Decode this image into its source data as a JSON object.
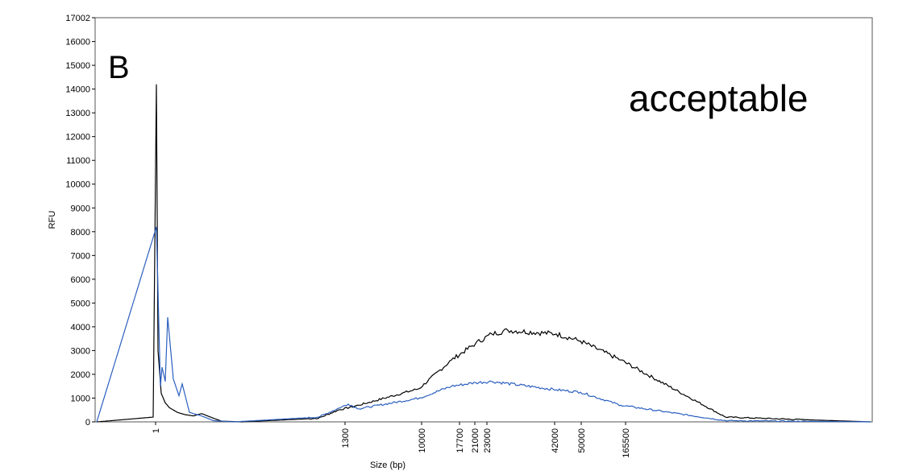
{
  "panel_label": "B",
  "annotation": "acceptable",
  "chart_data": {
    "type": "line",
    "xlabel": "Size (bp)",
    "ylabel": "RFU",
    "ylim": [
      0,
      17002
    ],
    "y_ticks": [
      0,
      1000,
      2000,
      3000,
      4000,
      5000,
      6000,
      7000,
      8000,
      9000,
      10000,
      11000,
      12000,
      13000,
      14000,
      15000,
      16000,
      17002
    ],
    "x_ticks": [
      "1",
      "1300",
      "10000",
      "17700",
      "21000",
      "23000",
      "42000",
      "50000",
      "165500"
    ],
    "grid": false,
    "series": [
      {
        "color": "#000000",
        "points": [
          [
            "<1",
            0
          ],
          [
            "1",
            200
          ],
          [
            "1",
            14200
          ],
          [
            "1",
            3000
          ],
          [
            "1",
            1200
          ],
          [
            "1",
            800
          ],
          [
            "1",
            600
          ],
          [
            "1",
            400
          ],
          [
            "1",
            300
          ],
          [
            "1",
            250
          ],
          [
            "1",
            350
          ],
          [
            "1",
            150
          ],
          [
            "1",
            30
          ],
          [
            "1",
            0
          ],
          [
            "1300",
            150
          ],
          [
            "1300",
            500
          ],
          [
            "1300",
            700
          ],
          [
            "10000",
            1400
          ],
          [
            "17700",
            2600
          ],
          [
            "21000",
            3300
          ],
          [
            "23000",
            3700
          ],
          [
            "23000",
            3850
          ],
          [
            "42000",
            3700
          ],
          [
            "50000",
            3400
          ],
          [
            "165500",
            2600
          ],
          [
            ">165500",
            200
          ],
          [
            ">165500",
            0
          ]
        ]
      },
      {
        "color": "#2b5fbf",
        "points": [
          [
            "<1",
            0
          ],
          [
            "1",
            8200
          ],
          [
            "1",
            1500
          ],
          [
            "1",
            2300
          ],
          [
            "1",
            1700
          ],
          [
            "1",
            4400
          ],
          [
            "1",
            1800
          ],
          [
            "1",
            1100
          ],
          [
            "1",
            1600
          ],
          [
            "1",
            400
          ],
          [
            "1",
            250
          ],
          [
            "1",
            50
          ],
          [
            "1",
            0
          ],
          [
            "1300",
            200
          ],
          [
            "1300",
            750
          ],
          [
            "1300",
            550
          ],
          [
            "10000",
            1000
          ],
          [
            "17700",
            1500
          ],
          [
            "21000",
            1650
          ],
          [
            "23000",
            1700
          ],
          [
            "42000",
            1350
          ],
          [
            "50000",
            1250
          ],
          [
            "165500",
            700
          ],
          [
            ">165500",
            50
          ],
          [
            ">165500",
            0
          ]
        ]
      }
    ]
  }
}
